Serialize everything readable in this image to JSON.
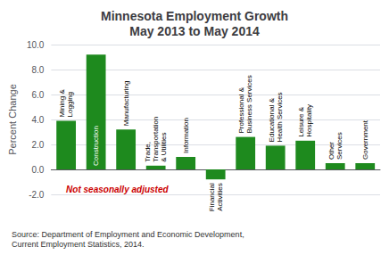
{
  "chart_data": {
    "type": "bar",
    "title": "Minnesota Employment Growth\nMay 2013 to May 2014",
    "ylabel": "Percent Change",
    "categories": [
      "Mining &\nLogging",
      "Construction",
      "Manufacturing",
      "Trade,\nTransportation\n& Utilities",
      "Information",
      "Financial\nActivities",
      "Professional &\nBusiness Services",
      "Educational &\nHealth Services",
      "Leisure &\nHospitality",
      "Other\nServices",
      "Government"
    ],
    "values": [
      3.9,
      9.2,
      3.2,
      0.3,
      1.0,
      -0.8,
      2.6,
      1.9,
      2.3,
      0.5,
      0.5
    ],
    "color": "#1e8a1e",
    "ylim": [
      -2.0,
      10.0
    ],
    "yticks": [
      {
        "value": -2,
        "label": "-2.0"
      },
      {
        "value": 0,
        "label": "0.0"
      },
      {
        "value": 2,
        "label": "2.0"
      },
      {
        "value": 4,
        "label": "4.0"
      },
      {
        "value": 6,
        "label": "6.0"
      },
      {
        "value": 8,
        "label": "8.0"
      },
      {
        "value": 10,
        "label": "10.0"
      }
    ],
    "grid": true,
    "tick_labels": "y",
    "annotations": [
      {
        "text": "Not seasonally adjusted",
        "x": "Mining &\nLogging",
        "y": -1.6,
        "color": "#cc0000"
      }
    ],
    "source": "Source: Department of Employment and Economic Development,\nCurrent Employment Statistics, 2014."
  }
}
